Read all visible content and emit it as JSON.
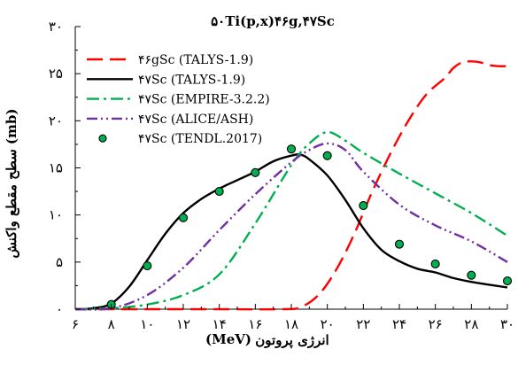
{
  "chart_data": {
    "type": "line",
    "title": "۵۰Ti(p,x)۴۶g,۴۷Sc",
    "xlabel_line1": "انرژی پروتون",
    "xlabel_line2": "(MeV)",
    "ylabel": "سطح مقطع واکنش (mb)",
    "xlim": [
      6,
      30
    ],
    "ylim": [
      0,
      30
    ],
    "x_ticks": [
      {
        "value": 6,
        "label": "۶"
      },
      {
        "value": 8,
        "label": "۸"
      },
      {
        "value": 10,
        "label": "۱۰"
      },
      {
        "value": 12,
        "label": "۱۲"
      },
      {
        "value": 14,
        "label": "۱۴"
      },
      {
        "value": 16,
        "label": "۱۶"
      },
      {
        "value": 18,
        "label": "۱۸"
      },
      {
        "value": 20,
        "label": "۲۰"
      },
      {
        "value": 22,
        "label": "۲۲"
      },
      {
        "value": 24,
        "label": "۲۴"
      },
      {
        "value": 26,
        "label": "۲۶"
      },
      {
        "value": 28,
        "label": "۲۸"
      },
      {
        "value": 30,
        "label": "۳۰"
      }
    ],
    "y_ticks": [
      {
        "value": 0,
        "label": "۰"
      },
      {
        "value": 5,
        "label": "۵"
      },
      {
        "value": 10,
        "label": "۱۰"
      },
      {
        "value": 15,
        "label": "۱۵"
      },
      {
        "value": 20,
        "label": "۲۰"
      },
      {
        "value": 25,
        "label": "۲۵"
      },
      {
        "value": 30,
        "label": "۳۰"
      }
    ],
    "grid": false,
    "legend_position": "top-left",
    "series": [
      {
        "name": "۴۶gSc (TALYS-1.9)",
        "style": "dashed",
        "color": "#ff0000",
        "marker": "none",
        "x": [
          6,
          10,
          14,
          17.5,
          18.5,
          19.5,
          20.5,
          21.5,
          22.5,
          23.5,
          24.5,
          25.5,
          26.5,
          27,
          27.5,
          28,
          28.5,
          29,
          29.5,
          30
        ],
        "y": [
          0,
          0,
          0,
          0,
          0.2,
          1.5,
          4.2,
          8,
          12.5,
          16.5,
          20,
          22.8,
          24.5,
          25.6,
          26.2,
          26.3,
          26.2,
          25.9,
          25.8,
          25.8
        ]
      },
      {
        "name": "۴۷Sc (TALYS-1.9)",
        "style": "solid",
        "color": "#000000",
        "marker": "none",
        "x": [
          6,
          7,
          8,
          9,
          10,
          11,
          12,
          13,
          14,
          15,
          16,
          17,
          18,
          18.5,
          19,
          20,
          21,
          22,
          23,
          24,
          25,
          26,
          27,
          28,
          29,
          30
        ],
        "y": [
          0,
          0.1,
          0.6,
          2.4,
          5.2,
          8,
          10.2,
          11.7,
          12.8,
          13.7,
          14.6,
          15.7,
          16.3,
          16.4,
          15.9,
          14.2,
          11.6,
          8.6,
          6.3,
          5.1,
          4.3,
          3.9,
          3.3,
          2.9,
          2.6,
          2.3
        ]
      },
      {
        "name": "۴۷Sc (EMPIRE-3.2.2)",
        "style": "dash-dot",
        "color": "#00b050",
        "marker": "none",
        "x": [
          6,
          8,
          10,
          12,
          14,
          16,
          18,
          19,
          20,
          21,
          22,
          24,
          26,
          28,
          30
        ],
        "y": [
          0,
          0.1,
          0.5,
          1.5,
          3.7,
          9.1,
          15.3,
          17.6,
          18.8,
          17.9,
          16.6,
          14.4,
          12.3,
          10.2,
          7.8
        ]
      },
      {
        "name": "۴۷Sc (ALICE/ASH)",
        "style": "dash-dot-dot",
        "color": "#7030a0",
        "marker": "none",
        "x": [
          6,
          8,
          10,
          12,
          14,
          16,
          18,
          19,
          20,
          21,
          22,
          24,
          26,
          28,
          30
        ],
        "y": [
          0,
          0.1,
          1.5,
          4.4,
          8.4,
          12.2,
          15.6,
          16.9,
          17.6,
          16.9,
          14.6,
          11.1,
          8.9,
          7.2,
          5
        ]
      },
      {
        "name": "۴۷Sc (TENDL.2017)",
        "style": "none",
        "color": "#00b050",
        "marker": "circle",
        "x": [
          8,
          10,
          12,
          14,
          16,
          18,
          20,
          22,
          24,
          26,
          28,
          30
        ],
        "y": [
          0.5,
          4.6,
          9.7,
          12.5,
          14.5,
          17,
          16.3,
          11,
          6.9,
          4.8,
          3.6,
          3
        ]
      }
    ]
  }
}
